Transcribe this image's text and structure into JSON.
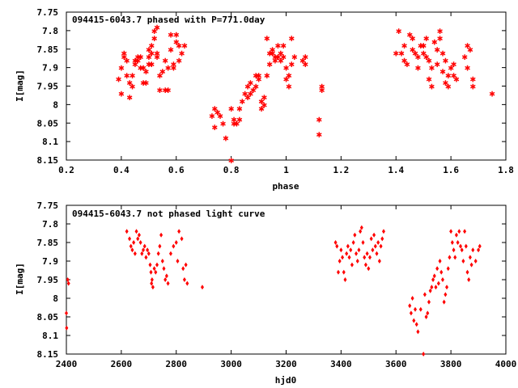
{
  "marker_color": "#ff0000",
  "axis_color": "#000000",
  "chart_data": [
    {
      "type": "scatter",
      "title": "094415-6043.7 phased with P=771.0day",
      "xlabel": "phase",
      "ylabel": "I[mag]",
      "xlim": [
        0.2,
        1.8
      ],
      "ylim": [
        7.75,
        8.15
      ],
      "y_inverted": true,
      "x_ticks": [
        "0.2",
        "0.4",
        "0.6",
        "0.8",
        "1",
        "1.2",
        "1.4",
        "1.6",
        "1.8"
      ],
      "y_ticks": [
        "7.75",
        "7.8",
        "7.85",
        "7.9",
        "7.95",
        "8",
        "8.05",
        "8.1",
        "8.15"
      ],
      "marker": "star",
      "points": [
        [
          0.39,
          7.93
        ],
        [
          0.4,
          7.9
        ],
        [
          0.4,
          7.97
        ],
        [
          0.41,
          7.87
        ],
        [
          0.41,
          7.86
        ],
        [
          0.42,
          7.88
        ],
        [
          0.42,
          7.92
        ],
        [
          0.43,
          7.94
        ],
        [
          0.43,
          7.98
        ],
        [
          0.44,
          7.95
        ],
        [
          0.44,
          7.92
        ],
        [
          0.45,
          7.88
        ],
        [
          0.45,
          7.89
        ],
        [
          0.46,
          7.87
        ],
        [
          0.46,
          7.88
        ],
        [
          0.47,
          7.87
        ],
        [
          0.47,
          7.9
        ],
        [
          0.48,
          7.9
        ],
        [
          0.48,
          7.94
        ],
        [
          0.49,
          7.91
        ],
        [
          0.49,
          7.94
        ],
        [
          0.5,
          7.87
        ],
        [
          0.5,
          7.89
        ],
        [
          0.5,
          7.85
        ],
        [
          0.51,
          7.84
        ],
        [
          0.51,
          7.89
        ],
        [
          0.51,
          7.86
        ],
        [
          0.52,
          7.82
        ],
        [
          0.52,
          7.8
        ],
        [
          0.53,
          7.79
        ],
        [
          0.53,
          7.86
        ],
        [
          0.53,
          7.87
        ],
        [
          0.54,
          7.92
        ],
        [
          0.54,
          7.96
        ],
        [
          0.55,
          7.91
        ],
        [
          0.56,
          7.88
        ],
        [
          0.56,
          7.96
        ],
        [
          0.57,
          7.9
        ],
        [
          0.57,
          7.96
        ],
        [
          0.58,
          7.85
        ],
        [
          0.58,
          7.81
        ],
        [
          0.59,
          7.89
        ],
        [
          0.59,
          7.9
        ],
        [
          0.6,
          7.83
        ],
        [
          0.6,
          7.81
        ],
        [
          0.61,
          7.84
        ],
        [
          0.61,
          7.88
        ],
        [
          0.62,
          7.86
        ],
        [
          0.63,
          7.84
        ],
        [
          0.73,
          8.03
        ],
        [
          0.74,
          8.06
        ],
        [
          0.74,
          8.01
        ],
        [
          0.75,
          8.02
        ],
        [
          0.76,
          8.03
        ],
        [
          0.77,
          8.05
        ],
        [
          0.78,
          8.09
        ],
        [
          0.8,
          8.15
        ],
        [
          0.8,
          8.01
        ],
        [
          0.81,
          8.04
        ],
        [
          0.81,
          8.05
        ],
        [
          0.82,
          8.05
        ],
        [
          0.83,
          8.01
        ],
        [
          0.83,
          8.04
        ],
        [
          0.84,
          7.99
        ],
        [
          0.85,
          7.97
        ],
        [
          0.86,
          7.95
        ],
        [
          0.86,
          7.98
        ],
        [
          0.87,
          7.97
        ],
        [
          0.87,
          7.94
        ],
        [
          0.88,
          7.96
        ],
        [
          0.89,
          7.92
        ],
        [
          0.89,
          7.95
        ],
        [
          0.9,
          7.93
        ],
        [
          0.9,
          7.92
        ],
        [
          0.91,
          7.99
        ],
        [
          0.91,
          8.01
        ],
        [
          0.92,
          7.98
        ],
        [
          0.92,
          8.0
        ],
        [
          0.93,
          7.82
        ],
        [
          0.93,
          7.92
        ],
        [
          0.94,
          7.86
        ],
        [
          0.94,
          7.89
        ],
        [
          0.95,
          7.85
        ],
        [
          0.95,
          7.86
        ],
        [
          0.96,
          7.87
        ],
        [
          0.96,
          7.88
        ],
        [
          0.97,
          7.84
        ],
        [
          0.97,
          7.87
        ],
        [
          0.98,
          7.88
        ],
        [
          0.98,
          7.86
        ],
        [
          0.99,
          7.87
        ],
        [
          0.99,
          7.84
        ],
        [
          1.0,
          7.9
        ],
        [
          1.0,
          7.93
        ],
        [
          1.01,
          7.95
        ],
        [
          1.01,
          7.92
        ],
        [
          1.02,
          7.89
        ],
        [
          1.02,
          7.82
        ],
        [
          1.03,
          7.87
        ],
        [
          1.06,
          7.88
        ],
        [
          1.07,
          7.89
        ],
        [
          1.07,
          7.87
        ],
        [
          1.12,
          8.04
        ],
        [
          1.12,
          8.08
        ],
        [
          1.13,
          7.95
        ],
        [
          1.13,
          7.96
        ],
        [
          1.4,
          7.86
        ],
        [
          1.41,
          7.8
        ],
        [
          1.42,
          7.86
        ],
        [
          1.43,
          7.84
        ],
        [
          1.43,
          7.88
        ],
        [
          1.44,
          7.89
        ],
        [
          1.45,
          7.81
        ],
        [
          1.46,
          7.82
        ],
        [
          1.46,
          7.85
        ],
        [
          1.47,
          7.86
        ],
        [
          1.48,
          7.87
        ],
        [
          1.48,
          7.9
        ],
        [
          1.49,
          7.84
        ],
        [
          1.5,
          7.86
        ],
        [
          1.5,
          7.84
        ],
        [
          1.51,
          7.82
        ],
        [
          1.51,
          7.87
        ],
        [
          1.52,
          7.88
        ],
        [
          1.52,
          7.93
        ],
        [
          1.53,
          7.9
        ],
        [
          1.53,
          7.95
        ],
        [
          1.54,
          7.83
        ],
        [
          1.55,
          7.85
        ],
        [
          1.55,
          7.89
        ],
        [
          1.56,
          7.8
        ],
        [
          1.56,
          7.82
        ],
        [
          1.57,
          7.86
        ],
        [
          1.57,
          7.91
        ],
        [
          1.58,
          7.94
        ],
        [
          1.58,
          7.88
        ],
        [
          1.59,
          7.95
        ],
        [
          1.59,
          7.92
        ],
        [
          1.6,
          7.9
        ],
        [
          1.61,
          7.92
        ],
        [
          1.61,
          7.89
        ],
        [
          1.62,
          7.93
        ],
        [
          1.65,
          7.87
        ],
        [
          1.66,
          7.9
        ],
        [
          1.66,
          7.84
        ],
        [
          1.67,
          7.85
        ],
        [
          1.68,
          7.93
        ],
        [
          1.68,
          7.95
        ],
        [
          1.75,
          7.97
        ]
      ]
    },
    {
      "type": "scatter",
      "title": "094415-6043.7 not phased light curve",
      "xlabel": "hjd0",
      "ylabel": "I[mag]",
      "xlim": [
        2400,
        4000
      ],
      "ylim": [
        7.75,
        8.15
      ],
      "y_inverted": true,
      "x_ticks": [
        "2400",
        "2600",
        "2800",
        "3000",
        "3200",
        "3400",
        "3600",
        "3800",
        "4000"
      ],
      "y_ticks": [
        "7.75",
        "7.8",
        "7.85",
        "7.9",
        "7.95",
        "8",
        "8.05",
        "8.1",
        "8.15"
      ],
      "marker": "dot",
      "points": [
        [
          2400,
          8.04
        ],
        [
          2401,
          8.08
        ],
        [
          2405,
          7.95
        ],
        [
          2408,
          7.96
        ],
        [
          2620,
          7.82
        ],
        [
          2630,
          7.84
        ],
        [
          2635,
          7.86
        ],
        [
          2640,
          7.87
        ],
        [
          2645,
          7.85
        ],
        [
          2650,
          7.88
        ],
        [
          2655,
          7.82
        ],
        [
          2660,
          7.84
        ],
        [
          2665,
          7.83
        ],
        [
          2670,
          7.85
        ],
        [
          2675,
          7.88
        ],
        [
          2680,
          7.87
        ],
        [
          2685,
          7.86
        ],
        [
          2690,
          7.89
        ],
        [
          2695,
          7.87
        ],
        [
          2700,
          7.88
        ],
        [
          2705,
          7.91
        ],
        [
          2708,
          7.93
        ],
        [
          2710,
          7.96
        ],
        [
          2712,
          7.95
        ],
        [
          2715,
          7.97
        ],
        [
          2720,
          7.92
        ],
        [
          2725,
          7.93
        ],
        [
          2730,
          7.91
        ],
        [
          2735,
          7.88
        ],
        [
          2740,
          7.86
        ],
        [
          2745,
          7.83
        ],
        [
          2750,
          7.9
        ],
        [
          2755,
          7.92
        ],
        [
          2760,
          7.95
        ],
        [
          2765,
          7.94
        ],
        [
          2770,
          7.96
        ],
        [
          2780,
          7.88
        ],
        [
          2790,
          7.86
        ],
        [
          2800,
          7.85
        ],
        [
          2805,
          7.9
        ],
        [
          2810,
          7.82
        ],
        [
          2820,
          7.84
        ],
        [
          2825,
          7.92
        ],
        [
          2830,
          7.95
        ],
        [
          2835,
          7.91
        ],
        [
          2840,
          7.96
        ],
        [
          2895,
          7.97
        ],
        [
          3380,
          7.85
        ],
        [
          3385,
          7.86
        ],
        [
          3390,
          7.93
        ],
        [
          3395,
          7.9
        ],
        [
          3400,
          7.87
        ],
        [
          3405,
          7.89
        ],
        [
          3410,
          7.93
        ],
        [
          3415,
          7.95
        ],
        [
          3420,
          7.88
        ],
        [
          3425,
          7.86
        ],
        [
          3430,
          7.89
        ],
        [
          3435,
          7.87
        ],
        [
          3440,
          7.91
        ],
        [
          3445,
          7.85
        ],
        [
          3450,
          7.83
        ],
        [
          3455,
          7.88
        ],
        [
          3460,
          7.9
        ],
        [
          3465,
          7.87
        ],
        [
          3470,
          7.82
        ],
        [
          3475,
          7.81
        ],
        [
          3480,
          7.85
        ],
        [
          3485,
          7.89
        ],
        [
          3490,
          7.91
        ],
        [
          3495,
          7.88
        ],
        [
          3500,
          7.92
        ],
        [
          3505,
          7.89
        ],
        [
          3510,
          7.84
        ],
        [
          3515,
          7.87
        ],
        [
          3520,
          7.83
        ],
        [
          3525,
          7.86
        ],
        [
          3530,
          7.88
        ],
        [
          3535,
          7.85
        ],
        [
          3540,
          7.9
        ],
        [
          3545,
          7.86
        ],
        [
          3550,
          7.84
        ],
        [
          3555,
          7.82
        ],
        [
          3650,
          8.02
        ],
        [
          3655,
          8.04
        ],
        [
          3660,
          8.0
        ],
        [
          3665,
          8.06
        ],
        [
          3670,
          8.03
        ],
        [
          3675,
          8.07
        ],
        [
          3680,
          8.09
        ],
        [
          3690,
          8.03
        ],
        [
          3700,
          8.15
        ],
        [
          3705,
          7.99
        ],
        [
          3710,
          8.05
        ],
        [
          3715,
          8.04
        ],
        [
          3720,
          8.01
        ],
        [
          3725,
          7.98
        ],
        [
          3730,
          7.97
        ],
        [
          3735,
          7.95
        ],
        [
          3740,
          7.94
        ],
        [
          3745,
          7.97
        ],
        [
          3750,
          7.92
        ],
        [
          3755,
          7.96
        ],
        [
          3760,
          7.9
        ],
        [
          3765,
          7.93
        ],
        [
          3770,
          7.95
        ],
        [
          3775,
          8.01
        ],
        [
          3780,
          7.99
        ],
        [
          3785,
          7.97
        ],
        [
          3790,
          7.92
        ],
        [
          3795,
          7.89
        ],
        [
          3800,
          7.82
        ],
        [
          3805,
          7.85
        ],
        [
          3810,
          7.87
        ],
        [
          3815,
          7.89
        ],
        [
          3820,
          7.83
        ],
        [
          3825,
          7.85
        ],
        [
          3830,
          7.82
        ],
        [
          3835,
          7.86
        ],
        [
          3840,
          7.87
        ],
        [
          3845,
          7.9
        ],
        [
          3850,
          7.82
        ],
        [
          3855,
          7.86
        ],
        [
          3860,
          7.93
        ],
        [
          3865,
          7.95
        ],
        [
          3870,
          7.89
        ],
        [
          3875,
          7.91
        ],
        [
          3880,
          7.87
        ],
        [
          3890,
          7.9
        ],
        [
          3900,
          7.87
        ],
        [
          3905,
          7.86
        ]
      ]
    }
  ]
}
